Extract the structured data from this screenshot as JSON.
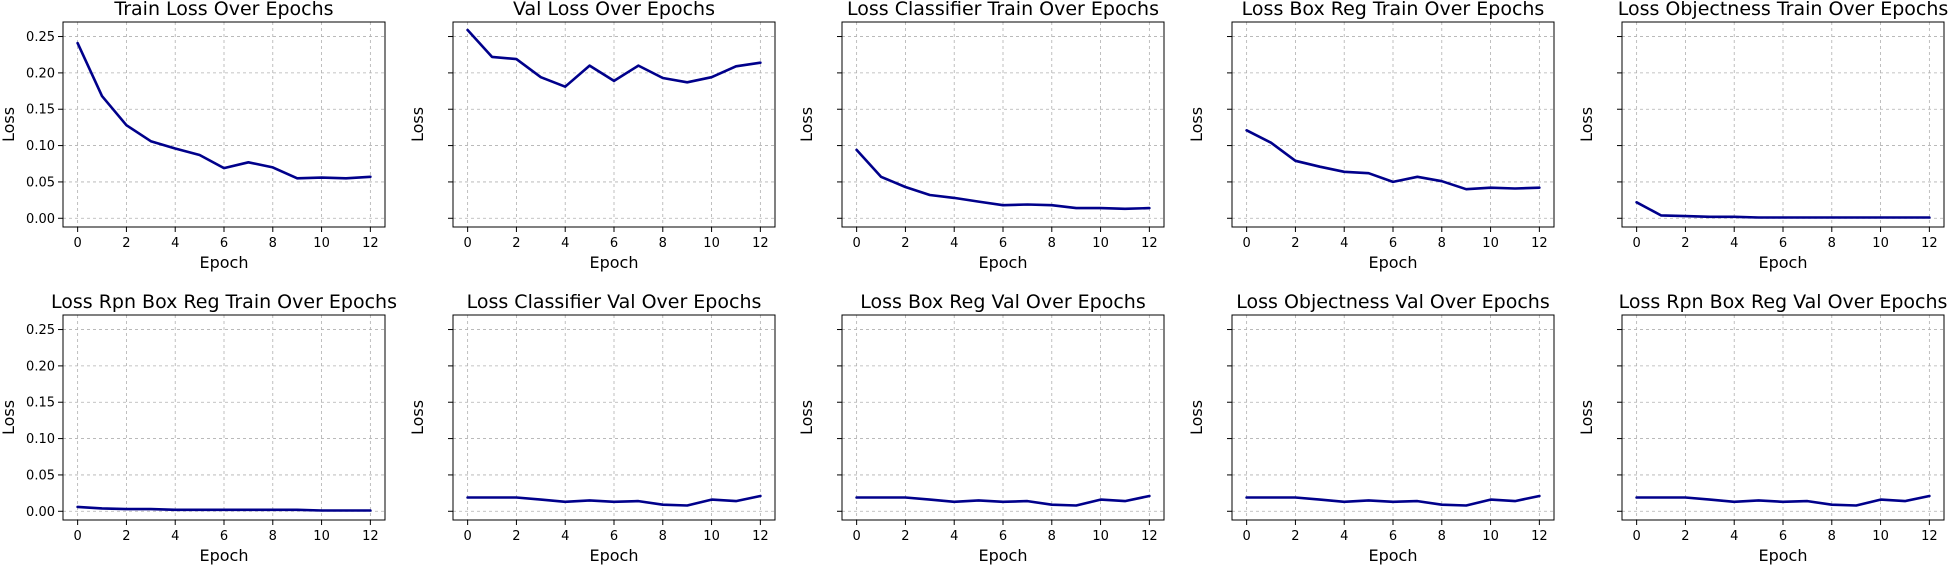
{
  "chart_data": [
    {
      "type": "line",
      "title": "Train Loss Over Epochs",
      "xlabel": "Epoch",
      "ylabel": "Loss",
      "x": [
        0,
        1,
        2,
        3,
        4,
        5,
        6,
        7,
        8,
        9,
        10,
        11,
        12
      ],
      "values": [
        0.241,
        0.168,
        0.128,
        0.106,
        0.096,
        0.087,
        0.069,
        0.077,
        0.07,
        0.055,
        0.056,
        0.055,
        0.057
      ],
      "xlim": [
        -0.6,
        12.6
      ],
      "ylim": [
        -0.012,
        0.27
      ],
      "xticks": [
        0,
        2,
        4,
        6,
        8,
        10,
        12
      ],
      "yticks": [
        0.0,
        0.05,
        0.1,
        0.15,
        0.2,
        0.25
      ],
      "yticklabels": [
        "0.00",
        "0.05",
        "0.10",
        "0.15",
        "0.20",
        "0.25"
      ],
      "grid": true,
      "color": "#00008b"
    },
    {
      "type": "line",
      "title": "Val Loss Over Epochs",
      "xlabel": "Epoch",
      "ylabel": "Loss",
      "x": [
        0,
        1,
        2,
        3,
        4,
        5,
        6,
        7,
        8,
        9,
        10,
        11,
        12
      ],
      "values": [
        0.259,
        0.222,
        0.219,
        0.194,
        0.181,
        0.21,
        0.189,
        0.21,
        0.193,
        0.187,
        0.194,
        0.209,
        0.214
      ],
      "xlim": [
        -0.6,
        12.6
      ],
      "ylim": [
        -0.012,
        0.27
      ],
      "xticks": [
        0,
        2,
        4,
        6,
        8,
        10,
        12
      ],
      "yticks": [
        0.0,
        0.05,
        0.1,
        0.15,
        0.2,
        0.25
      ],
      "yticklabels": [],
      "grid": true,
      "color": "#00008b"
    },
    {
      "type": "line",
      "title": "Loss Classifier Train Over Epochs",
      "xlabel": "Epoch",
      "ylabel": "Loss",
      "x": [
        0,
        1,
        2,
        3,
        4,
        5,
        6,
        7,
        8,
        9,
        10,
        11,
        12
      ],
      "values": [
        0.094,
        0.057,
        0.043,
        0.032,
        0.028,
        0.023,
        0.018,
        0.019,
        0.018,
        0.014,
        0.014,
        0.013,
        0.014
      ],
      "xlim": [
        -0.6,
        12.6
      ],
      "ylim": [
        -0.012,
        0.27
      ],
      "xticks": [
        0,
        2,
        4,
        6,
        8,
        10,
        12
      ],
      "yticks": [
        0.0,
        0.05,
        0.1,
        0.15,
        0.2,
        0.25
      ],
      "yticklabels": [],
      "grid": true,
      "color": "#00008b"
    },
    {
      "type": "line",
      "title": "Loss Box Reg Train Over Epochs",
      "xlabel": "Epoch",
      "ylabel": "Loss",
      "x": [
        0,
        1,
        2,
        3,
        4,
        5,
        6,
        7,
        8,
        9,
        10,
        11,
        12
      ],
      "values": [
        0.121,
        0.104,
        0.079,
        0.071,
        0.064,
        0.062,
        0.05,
        0.057,
        0.051,
        0.04,
        0.042,
        0.041,
        0.042
      ],
      "xlim": [
        -0.6,
        12.6
      ],
      "ylim": [
        -0.012,
        0.27
      ],
      "xticks": [
        0,
        2,
        4,
        6,
        8,
        10,
        12
      ],
      "yticks": [
        0.0,
        0.05,
        0.1,
        0.15,
        0.2,
        0.25
      ],
      "yticklabels": [],
      "grid": true,
      "color": "#00008b"
    },
    {
      "type": "line",
      "title": "Loss Objectness Train Over Epochs",
      "xlabel": "Epoch",
      "ylabel": "Loss",
      "x": [
        0,
        1,
        2,
        3,
        4,
        5,
        6,
        7,
        8,
        9,
        10,
        11,
        12
      ],
      "values": [
        0.022,
        0.004,
        0.003,
        0.002,
        0.002,
        0.001,
        0.001,
        0.001,
        0.001,
        0.001,
        0.001,
        0.001,
        0.001
      ],
      "xlim": [
        -0.6,
        12.6
      ],
      "ylim": [
        -0.012,
        0.27
      ],
      "xticks": [
        0,
        2,
        4,
        6,
        8,
        10,
        12
      ],
      "yticks": [
        0.0,
        0.05,
        0.1,
        0.15,
        0.2,
        0.25
      ],
      "yticklabels": [],
      "grid": true,
      "color": "#00008b"
    },
    {
      "type": "line",
      "title": "Loss Rpn Box Reg Train Over Epochs",
      "xlabel": "Epoch",
      "ylabel": "Loss",
      "x": [
        0,
        1,
        2,
        3,
        4,
        5,
        6,
        7,
        8,
        9,
        10,
        11,
        12
      ],
      "values": [
        0.006,
        0.004,
        0.003,
        0.003,
        0.002,
        0.002,
        0.002,
        0.002,
        0.002,
        0.002,
        0.001,
        0.001,
        0.001
      ],
      "xlim": [
        -0.6,
        12.6
      ],
      "ylim": [
        -0.012,
        0.27
      ],
      "xticks": [
        0,
        2,
        4,
        6,
        8,
        10,
        12
      ],
      "yticks": [
        0.0,
        0.05,
        0.1,
        0.15,
        0.2,
        0.25
      ],
      "yticklabels": [
        "0.00",
        "0.05",
        "0.10",
        "0.15",
        "0.20",
        "0.25"
      ],
      "grid": true,
      "color": "#00008b"
    },
    {
      "type": "line",
      "title": "Loss Classifier Val Over Epochs",
      "xlabel": "Epoch",
      "ylabel": "Loss",
      "x": [
        0,
        1,
        2,
        3,
        4,
        5,
        6,
        7,
        8,
        9,
        10,
        11,
        12
      ],
      "values": [
        0.019,
        0.019,
        0.019,
        0.016,
        0.013,
        0.015,
        0.013,
        0.014,
        0.009,
        0.008,
        0.016,
        0.014,
        0.021
      ],
      "xlim": [
        -0.6,
        12.6
      ],
      "ylim": [
        -0.012,
        0.27
      ],
      "xticks": [
        0,
        2,
        4,
        6,
        8,
        10,
        12
      ],
      "yticks": [
        0.0,
        0.05,
        0.1,
        0.15,
        0.2,
        0.25
      ],
      "yticklabels": [],
      "grid": true,
      "color": "#00008b"
    },
    {
      "type": "line",
      "title": "Loss Box Reg Val Over Epochs",
      "xlabel": "Epoch",
      "ylabel": "Loss",
      "x": [
        0,
        1,
        2,
        3,
        4,
        5,
        6,
        7,
        8,
        9,
        10,
        11,
        12
      ],
      "values": [
        0.019,
        0.019,
        0.019,
        0.016,
        0.013,
        0.015,
        0.013,
        0.014,
        0.009,
        0.008,
        0.016,
        0.014,
        0.021
      ],
      "xlim": [
        -0.6,
        12.6
      ],
      "ylim": [
        -0.012,
        0.27
      ],
      "xticks": [
        0,
        2,
        4,
        6,
        8,
        10,
        12
      ],
      "yticks": [
        0.0,
        0.05,
        0.1,
        0.15,
        0.2,
        0.25
      ],
      "yticklabels": [],
      "grid": true,
      "color": "#00008b"
    },
    {
      "type": "line",
      "title": "Loss Objectness Val Over Epochs",
      "xlabel": "Epoch",
      "ylabel": "Loss",
      "x": [
        0,
        1,
        2,
        3,
        4,
        5,
        6,
        7,
        8,
        9,
        10,
        11,
        12
      ],
      "values": [
        0.019,
        0.019,
        0.019,
        0.016,
        0.013,
        0.015,
        0.013,
        0.014,
        0.009,
        0.008,
        0.016,
        0.014,
        0.021
      ],
      "xlim": [
        -0.6,
        12.6
      ],
      "ylim": [
        -0.012,
        0.27
      ],
      "xticks": [
        0,
        2,
        4,
        6,
        8,
        10,
        12
      ],
      "yticks": [
        0.0,
        0.05,
        0.1,
        0.15,
        0.2,
        0.25
      ],
      "yticklabels": [],
      "grid": true,
      "color": "#00008b"
    },
    {
      "type": "line",
      "title": "Loss Rpn Box Reg Val Over Epochs",
      "xlabel": "Epoch",
      "ylabel": "Loss",
      "x": [
        0,
        1,
        2,
        3,
        4,
        5,
        6,
        7,
        8,
        9,
        10,
        11,
        12
      ],
      "values": [
        0.019,
        0.019,
        0.019,
        0.016,
        0.013,
        0.015,
        0.013,
        0.014,
        0.009,
        0.008,
        0.016,
        0.014,
        0.021
      ],
      "xlim": [
        -0.6,
        12.6
      ],
      "ylim": [
        -0.012,
        0.27
      ],
      "xticks": [
        0,
        2,
        4,
        6,
        8,
        10,
        12
      ],
      "yticks": [
        0.0,
        0.05,
        0.1,
        0.15,
        0.2,
        0.25
      ],
      "yticklabels": [],
      "grid": true,
      "color": "#00008b"
    }
  ]
}
